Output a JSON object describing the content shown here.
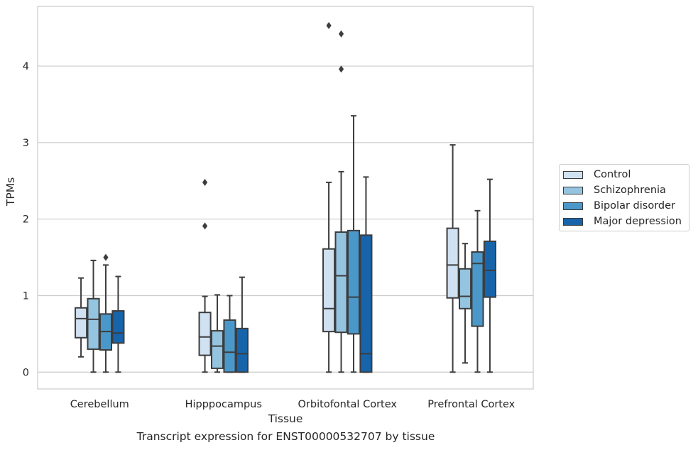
{
  "chart_data": {
    "type": "box",
    "title": "",
    "caption": "Transcript expression for ENST00000532707 by tissue",
    "xlabel": "Tissue",
    "ylabel": "TPMs",
    "categories": [
      "Cerebellum",
      "Hipppocampus",
      "Orbitofontal Cortex",
      "Prefrontal Cortex"
    ],
    "ylim": [
      -0.22,
      4.78
    ],
    "yticks": [
      0,
      1,
      2,
      3,
      4
    ],
    "grid": "horizontal",
    "legend": "right",
    "series": [
      {
        "name": "Control",
        "color": "#d0e1f2",
        "boxes": [
          {
            "whislo": 0.2,
            "q1": 0.45,
            "med": 0.7,
            "q3": 0.84,
            "whishi": 1.23,
            "fliers": []
          },
          {
            "whislo": 0.0,
            "q1": 0.22,
            "med": 0.46,
            "q3": 0.78,
            "whishi": 0.99,
            "fliers": [
              1.91,
              2.48
            ]
          },
          {
            "whislo": 0.0,
            "q1": 0.53,
            "med": 0.83,
            "q3": 1.61,
            "whishi": 2.48,
            "fliers": [
              4.53
            ]
          },
          {
            "whislo": 0.0,
            "q1": 0.97,
            "med": 1.4,
            "q3": 1.88,
            "whishi": 2.97,
            "fliers": []
          }
        ]
      },
      {
        "name": "Schizophrenia",
        "color": "#94c4df",
        "boxes": [
          {
            "whislo": 0.0,
            "q1": 0.3,
            "med": 0.69,
            "q3": 0.96,
            "whishi": 1.46,
            "fliers": []
          },
          {
            "whislo": 0.0,
            "q1": 0.05,
            "med": 0.34,
            "q3": 0.54,
            "whishi": 1.01,
            "fliers": []
          },
          {
            "whislo": 0.0,
            "q1": 0.52,
            "med": 1.26,
            "q3": 1.83,
            "whishi": 2.62,
            "fliers": [
              3.96,
              4.42
            ]
          },
          {
            "whislo": 0.12,
            "q1": 0.83,
            "med": 0.99,
            "q3": 1.35,
            "whishi": 1.68,
            "fliers": []
          }
        ]
      },
      {
        "name": "Bipolar disorder",
        "color": "#4a98c9",
        "boxes": [
          {
            "whislo": 0.0,
            "q1": 0.29,
            "med": 0.53,
            "q3": 0.76,
            "whishi": 1.4,
            "fliers": [
              1.5
            ]
          },
          {
            "whislo": 0.0,
            "q1": 0.0,
            "med": 0.26,
            "q3": 0.68,
            "whishi": 1.0,
            "fliers": []
          },
          {
            "whislo": 0.0,
            "q1": 0.5,
            "med": 0.98,
            "q3": 1.85,
            "whishi": 3.35,
            "fliers": []
          },
          {
            "whislo": 0.0,
            "q1": 0.6,
            "med": 1.42,
            "q3": 1.57,
            "whishi": 2.11,
            "fliers": []
          }
        ]
      },
      {
        "name": "Major depression",
        "color": "#1764ab",
        "boxes": [
          {
            "whislo": 0.0,
            "q1": 0.38,
            "med": 0.51,
            "q3": 0.8,
            "whishi": 1.25,
            "fliers": []
          },
          {
            "whislo": 0.0,
            "q1": 0.0,
            "med": 0.24,
            "q3": 0.57,
            "whishi": 1.24,
            "fliers": []
          },
          {
            "whislo": 0.0,
            "q1": 0.0,
            "med": 0.24,
            "q3": 1.79,
            "whishi": 2.55,
            "fliers": []
          },
          {
            "whislo": 0.0,
            "q1": 0.98,
            "med": 1.33,
            "q3": 1.71,
            "whishi": 2.52,
            "fliers": []
          }
        ]
      }
    ]
  }
}
